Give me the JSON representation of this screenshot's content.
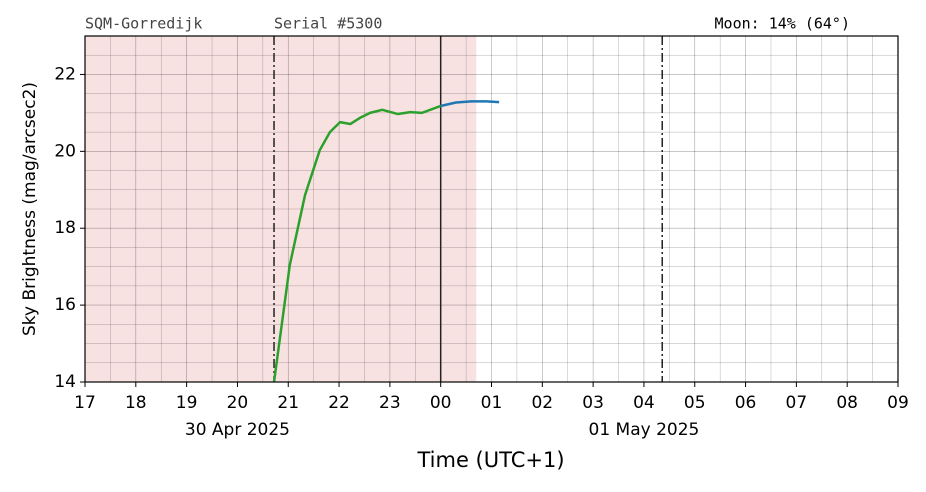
{
  "chart_data": {
    "type": "line",
    "header_left": "SQM-Gorredijk",
    "header_mid": "Serial #5300",
    "header_right": "Moon: 14% (64°)",
    "y_label": "Sky Brightness (mag/arcsec2)",
    "x_label": "Time (UTC+1)",
    "xlim": [
      17,
      33
    ],
    "ylim": [
      14,
      23
    ],
    "xticks": [
      17,
      18,
      19,
      20,
      21,
      22,
      23,
      {
        "value": 24,
        "label": "00"
      },
      {
        "value": 25,
        "label": "01"
      },
      {
        "value": 26,
        "label": "02"
      },
      {
        "value": 27,
        "label": "03"
      },
      {
        "value": 28,
        "label": "04"
      },
      {
        "value": 29,
        "label": "05"
      },
      {
        "value": 30,
        "label": "06"
      },
      {
        "value": 31,
        "label": "07"
      },
      {
        "value": 32,
        "label": "08"
      },
      {
        "value": 33,
        "label": "09"
      }
    ],
    "yticks": [
      14,
      16,
      18,
      20,
      22
    ],
    "date_labels": [
      {
        "value": 20,
        "label": "30 Apr 2025"
      },
      {
        "value": 28,
        "label": "01 May 2025"
      }
    ],
    "grid": true,
    "shade_xlim": [
      17,
      24.7
    ],
    "shade_color": "#f8e1e1",
    "vlines": [
      {
        "value": 20.72,
        "style": "dashdot"
      },
      {
        "value": 24,
        "style": "solid"
      },
      {
        "value": 28.36,
        "style": "dashdot"
      }
    ],
    "series": [
      {
        "color": "#2ca02c",
        "x": [
          20.72,
          21.03,
          21.33,
          21.62,
          21.82,
          22.02,
          22.22,
          22.41,
          22.61,
          22.85,
          23.16,
          23.4,
          23.63,
          24.0
        ],
        "values": [
          14.0,
          17.04,
          18.86,
          20.03,
          20.5,
          20.76,
          20.71,
          20.87,
          21.0,
          21.08,
          20.97,
          21.02,
          21.0,
          21.18
        ]
      },
      {
        "color": "#1f77b4",
        "x": [
          24.0,
          24.3,
          24.6,
          24.9,
          25.15
        ],
        "values": [
          21.18,
          21.27,
          21.3,
          21.3,
          21.28
        ]
      }
    ]
  }
}
